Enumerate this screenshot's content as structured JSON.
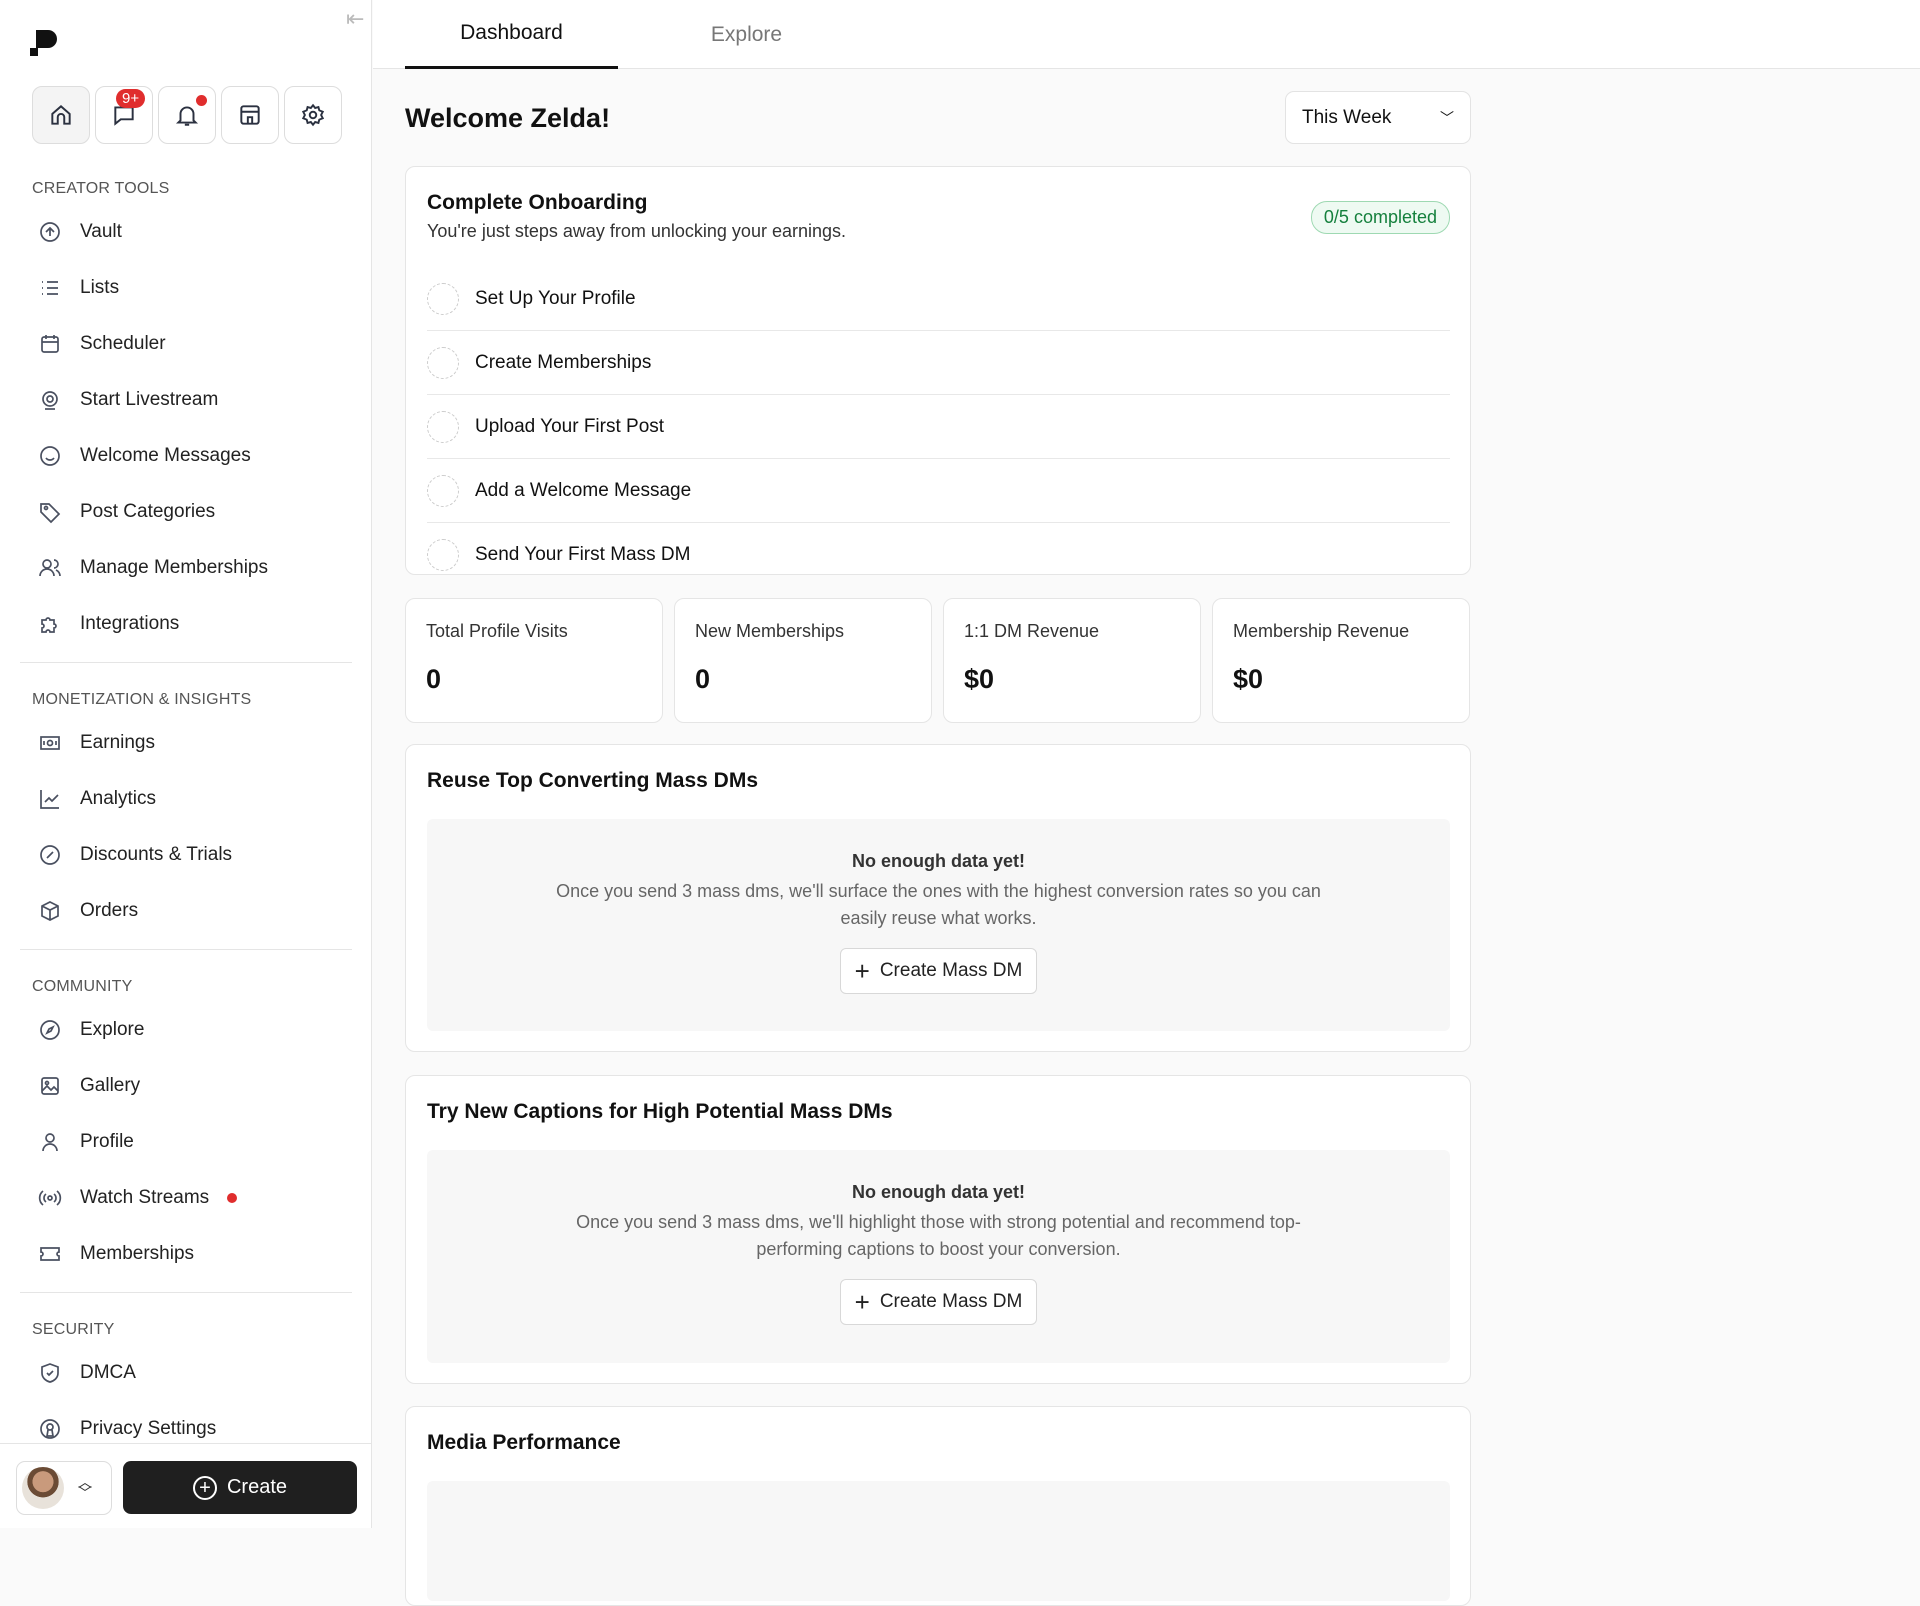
{
  "sidebar": {
    "notifications_badge": "9+",
    "sections": [
      {
        "title": "CREATOR TOOLS",
        "items": [
          {
            "label": "Vault",
            "icon": "vault-icon"
          },
          {
            "label": "Lists",
            "icon": "list-icon"
          },
          {
            "label": "Scheduler",
            "icon": "calendar-icon"
          },
          {
            "label": "Start Livestream",
            "icon": "webcam-icon"
          },
          {
            "label": "Welcome Messages",
            "icon": "smiley-icon"
          },
          {
            "label": "Post Categories",
            "icon": "tag-icon"
          },
          {
            "label": "Manage Memberships",
            "icon": "users-icon"
          },
          {
            "label": "Integrations",
            "icon": "puzzle-icon"
          }
        ]
      },
      {
        "title": "MONETIZATION & INSIGHTS",
        "items": [
          {
            "label": "Earnings",
            "icon": "cash-icon"
          },
          {
            "label": "Analytics",
            "icon": "chart-icon"
          },
          {
            "label": "Discounts & Trials",
            "icon": "discount-icon"
          },
          {
            "label": "Orders",
            "icon": "box-icon"
          }
        ]
      },
      {
        "title": "COMMUNITY",
        "items": [
          {
            "label": "Explore",
            "icon": "compass-icon"
          },
          {
            "label": "Gallery",
            "icon": "image-icon"
          },
          {
            "label": "Profile",
            "icon": "user-icon"
          },
          {
            "label": "Watch Streams",
            "icon": "broadcast-icon"
          },
          {
            "label": "Memberships",
            "icon": "ticket-icon"
          }
        ]
      },
      {
        "title": "SECURITY",
        "items": [
          {
            "label": "DMCA",
            "icon": "shield-icon"
          },
          {
            "label": "Privacy Settings",
            "icon": "privacy-icon"
          }
        ]
      }
    ],
    "create_label": "Create"
  },
  "tabs": [
    {
      "label": "Dashboard",
      "active": true
    },
    {
      "label": "Explore",
      "active": false
    }
  ],
  "main": {
    "welcome": "Welcome Zelda!",
    "period": "This Week",
    "onboarding": {
      "title": "Complete Onboarding",
      "subtitle": "You're just steps away from unlocking your earnings.",
      "progress": "0/5 completed",
      "steps": [
        "Set Up Your Profile",
        "Create Memberships",
        "Upload Your First Post",
        "Add a Welcome Message",
        "Send Your First Mass DM"
      ]
    },
    "stats": [
      {
        "label": "Total Profile Visits",
        "value": "0"
      },
      {
        "label": "New Memberships",
        "value": "0"
      },
      {
        "label": "1:1 DM Revenue",
        "value": "$0"
      },
      {
        "label": "Membership Revenue",
        "value": "$0"
      }
    ],
    "reuse": {
      "title": "Reuse Top Converting Mass DMs",
      "empty_title": "No enough data yet!",
      "empty_text": "Once you send 3 mass dms, we'll surface the ones with the highest conversion rates so you can easily reuse what works.",
      "button": "Create Mass DM"
    },
    "captions": {
      "title": "Try New Captions for High Potential Mass DMs",
      "empty_title": "No enough data yet!",
      "empty_text": "Once you send 3 mass dms, we'll highlight those with strong potential and recommend top-performing captions to boost your conversion.",
      "button": "Create Mass DM"
    },
    "media": {
      "title": "Media Performance"
    }
  }
}
